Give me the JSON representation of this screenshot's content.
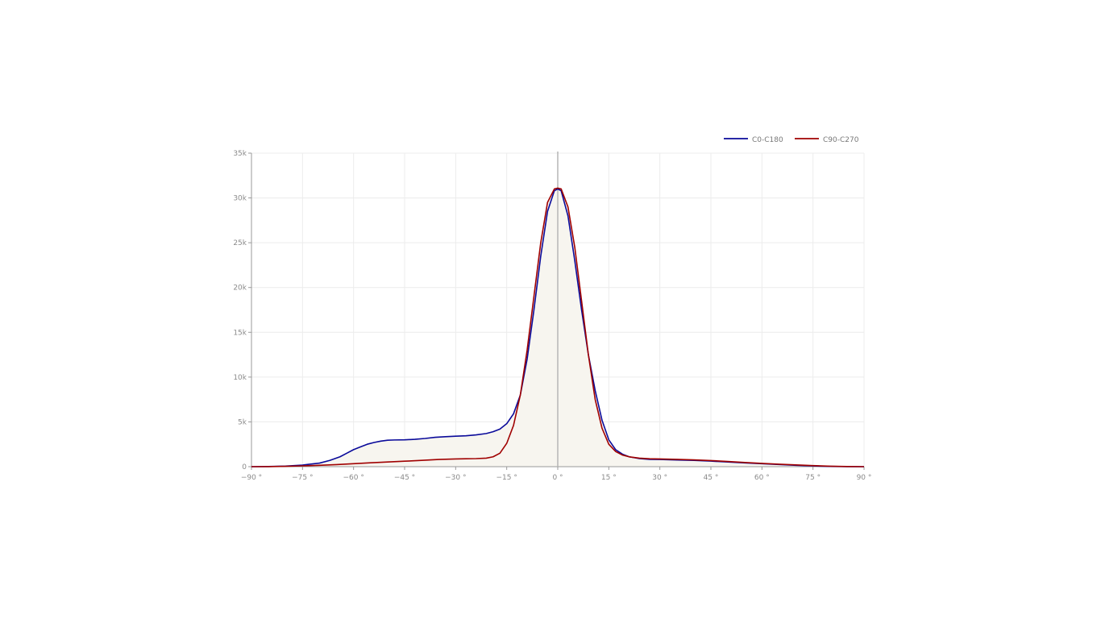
{
  "chart_data": {
    "type": "line",
    "xlim": [
      -90,
      90
    ],
    "ylim": [
      0,
      35000
    ],
    "x_ticks": [
      -90,
      -75,
      -60,
      -45,
      -30,
      -15,
      0,
      15,
      30,
      45,
      60,
      75,
      90
    ],
    "x_tick_labels": [
      "−90 °",
      "−75 °",
      "−60 °",
      "−45 °",
      "−30 °",
      "−15 °",
      "0 °",
      "15 °",
      "30 °",
      "45 °",
      "60 °",
      "75 °",
      "90 °"
    ],
    "y_ticks": [
      0,
      5000,
      10000,
      15000,
      20000,
      25000,
      30000,
      35000
    ],
    "y_tick_labels": [
      "0",
      "5k",
      "10k",
      "15k",
      "20k",
      "25k",
      "30k",
      "35k"
    ],
    "grid": true,
    "legend_position": "top-right",
    "fill_color": "#f7f5ef",
    "series": [
      {
        "name": "C0-C180",
        "color": "#0a0a9a",
        "x": [
          -90,
          -85,
          -80,
          -75,
          -70,
          -67,
          -64,
          -62,
          -60,
          -58,
          -56,
          -54,
          -52,
          -50,
          -48,
          -45,
          -42,
          -39,
          -36,
          -33,
          -30,
          -27,
          -24,
          -21,
          -19,
          -17,
          -15,
          -13,
          -11,
          -9,
          -7,
          -5,
          -3,
          -1,
          0,
          1,
          3,
          5,
          7,
          9,
          11,
          13,
          15,
          17,
          19,
          21,
          24,
          27,
          30,
          35,
          40,
          45,
          50,
          55,
          60,
          65,
          70,
          75,
          80,
          85,
          90
        ],
        "y": [
          0,
          20,
          60,
          180,
          400,
          700,
          1100,
          1500,
          1900,
          2200,
          2500,
          2700,
          2850,
          2950,
          2980,
          3000,
          3050,
          3150,
          3280,
          3350,
          3400,
          3450,
          3550,
          3700,
          3900,
          4200,
          4800,
          5900,
          8000,
          12000,
          17500,
          23500,
          28500,
          30800,
          31000,
          30800,
          28000,
          23000,
          17500,
          12500,
          8500,
          5200,
          3000,
          1900,
          1400,
          1100,
          900,
          820,
          800,
          750,
          700,
          620,
          520,
          420,
          330,
          240,
          150,
          80,
          30,
          10,
          0
        ]
      },
      {
        "name": "C90-C270",
        "color": "#a00000",
        "x": [
          -90,
          -85,
          -80,
          -75,
          -70,
          -65,
          -60,
          -55,
          -50,
          -45,
          -40,
          -35,
          -30,
          -27,
          -24,
          -21,
          -19,
          -17,
          -15,
          -13,
          -11,
          -9,
          -7,
          -5,
          -3,
          -1,
          0,
          1,
          3,
          5,
          7,
          9,
          11,
          13,
          15,
          17,
          19,
          21,
          24,
          27,
          30,
          35,
          40,
          45,
          50,
          55,
          60,
          65,
          70,
          75,
          80,
          85,
          90
        ],
        "y": [
          0,
          10,
          40,
          90,
          150,
          230,
          330,
          430,
          520,
          610,
          700,
          800,
          860,
          880,
          900,
          950,
          1100,
          1500,
          2600,
          4600,
          8000,
          13000,
          19000,
          25000,
          29500,
          31000,
          31100,
          31000,
          29000,
          24500,
          18500,
          12500,
          7500,
          4300,
          2500,
          1700,
          1300,
          1100,
          950,
          880,
          860,
          820,
          760,
          680,
          580,
          470,
          370,
          280,
          200,
          120,
          50,
          15,
          0
        ]
      }
    ]
  }
}
